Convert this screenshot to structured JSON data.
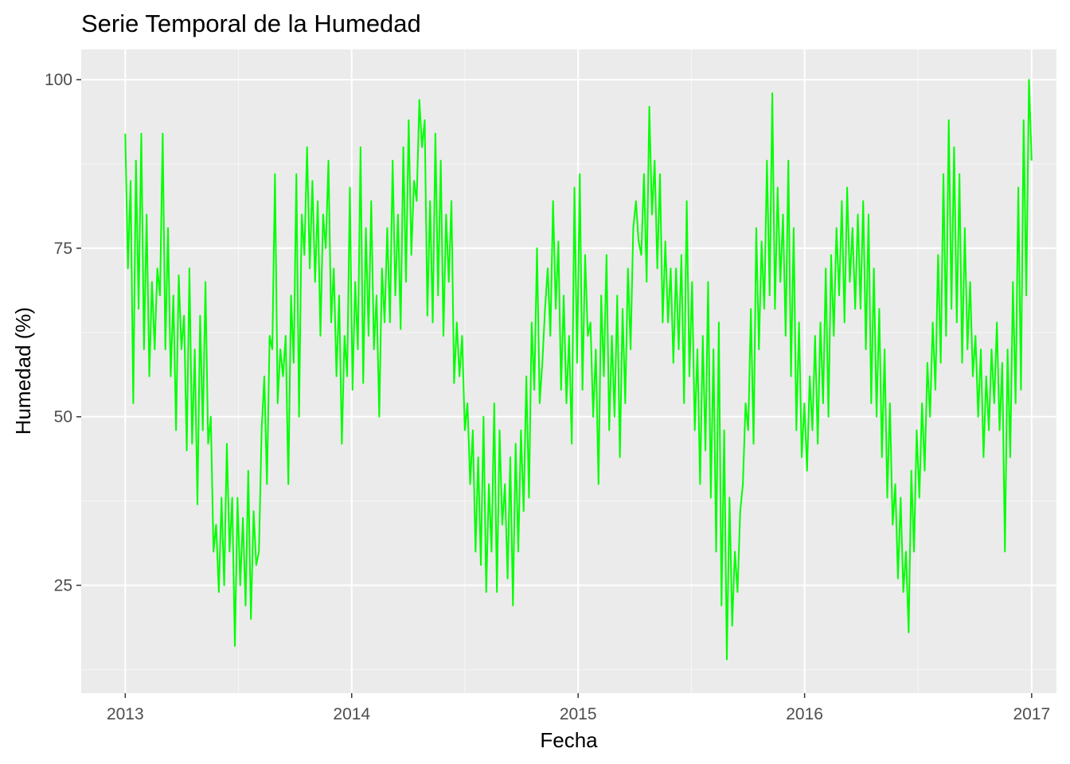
{
  "chart_data": {
    "type": "line",
    "title": "Serie Temporal de la Humedad",
    "xlabel": "Fecha",
    "ylabel": "Humedad (%)",
    "x_ticks": [
      "2013",
      "2014",
      "2015",
      "2016",
      "2017"
    ],
    "y_ticks": [
      "25",
      "50",
      "75",
      "100"
    ],
    "xlim": [
      "2012-10-22",
      "2017-02-10"
    ],
    "ylim": [
      9,
      104.5
    ],
    "grid": true,
    "legend": "none",
    "series": [
      {
        "color": "#00FF00",
        "x_start": "2013-01-01",
        "x_end": "2017-01-01",
        "values": [
          92,
          72,
          85,
          52,
          88,
          66,
          92,
          60,
          80,
          56,
          70,
          60,
          72,
          68,
          92,
          60,
          78,
          56,
          68,
          48,
          71,
          60,
          65,
          45,
          72,
          46,
          60,
          37,
          65,
          48,
          70,
          46,
          50,
          30,
          34,
          24,
          38,
          25,
          46,
          30,
          38,
          16,
          38,
          25,
          35,
          22,
          42,
          20,
          36,
          28,
          30,
          48,
          56,
          40,
          62,
          60,
          86,
          52,
          60,
          56,
          62,
          40,
          68,
          58,
          86,
          50,
          80,
          74,
          90,
          72,
          85,
          70,
          82,
          62,
          80,
          75,
          88,
          64,
          72,
          56,
          68,
          46,
          62,
          56,
          84,
          54,
          70,
          60,
          90,
          55,
          78,
          62,
          82,
          60,
          68,
          50,
          72,
          64,
          78,
          64,
          88,
          68,
          80,
          63,
          90,
          70,
          94,
          74,
          85,
          82,
          97,
          90,
          94,
          65,
          82,
          64,
          92,
          68,
          88,
          62,
          80,
          70,
          82,
          55,
          64,
          56,
          62,
          48,
          52,
          40,
          48,
          30,
          44,
          28,
          50,
          24,
          40,
          30,
          52,
          24,
          48,
          34,
          40,
          26,
          44,
          22,
          46,
          30,
          48,
          36,
          56,
          38,
          64,
          54,
          75,
          52,
          58,
          66,
          72,
          62,
          82,
          66,
          76,
          54,
          68,
          52,
          62,
          46,
          84,
          58,
          86,
          54,
          74,
          62,
          64,
          50,
          60,
          40,
          68,
          56,
          74,
          48,
          62,
          50,
          68,
          44,
          66,
          52,
          72,
          60,
          78,
          82,
          76,
          74,
          86,
          70,
          96,
          80,
          88,
          72,
          86,
          64,
          76,
          64,
          72,
          58,
          72,
          60,
          74,
          52,
          82,
          56,
          70,
          48,
          60,
          40,
          62,
          45,
          70,
          38,
          60,
          30,
          64,
          22,
          48,
          14,
          38,
          19,
          30,
          24,
          36,
          40,
          52,
          48,
          66,
          46,
          78,
          60,
          76,
          66,
          88,
          68,
          98,
          66,
          84,
          70,
          80,
          62,
          88,
          56,
          78,
          48,
          64,
          44,
          52,
          42,
          56,
          48,
          62,
          46,
          64,
          52,
          72,
          50,
          74,
          62,
          78,
          68,
          82,
          64,
          84,
          70,
          78,
          66,
          80,
          66,
          82,
          60,
          80,
          52,
          72,
          50,
          66,
          44,
          60,
          38,
          52,
          34,
          40,
          26,
          38,
          24,
          30,
          18,
          42,
          30,
          48,
          38,
          52,
          42,
          58,
          50,
          64,
          54,
          74,
          58,
          86,
          62,
          94,
          66,
          90,
          64,
          86,
          58,
          78,
          60,
          70,
          56,
          62,
          50,
          60,
          44,
          56,
          48,
          60,
          52,
          64,
          48,
          58,
          30,
          60,
          44,
          70,
          52,
          84,
          54,
          94,
          68,
          100,
          88
        ]
      }
    ]
  }
}
